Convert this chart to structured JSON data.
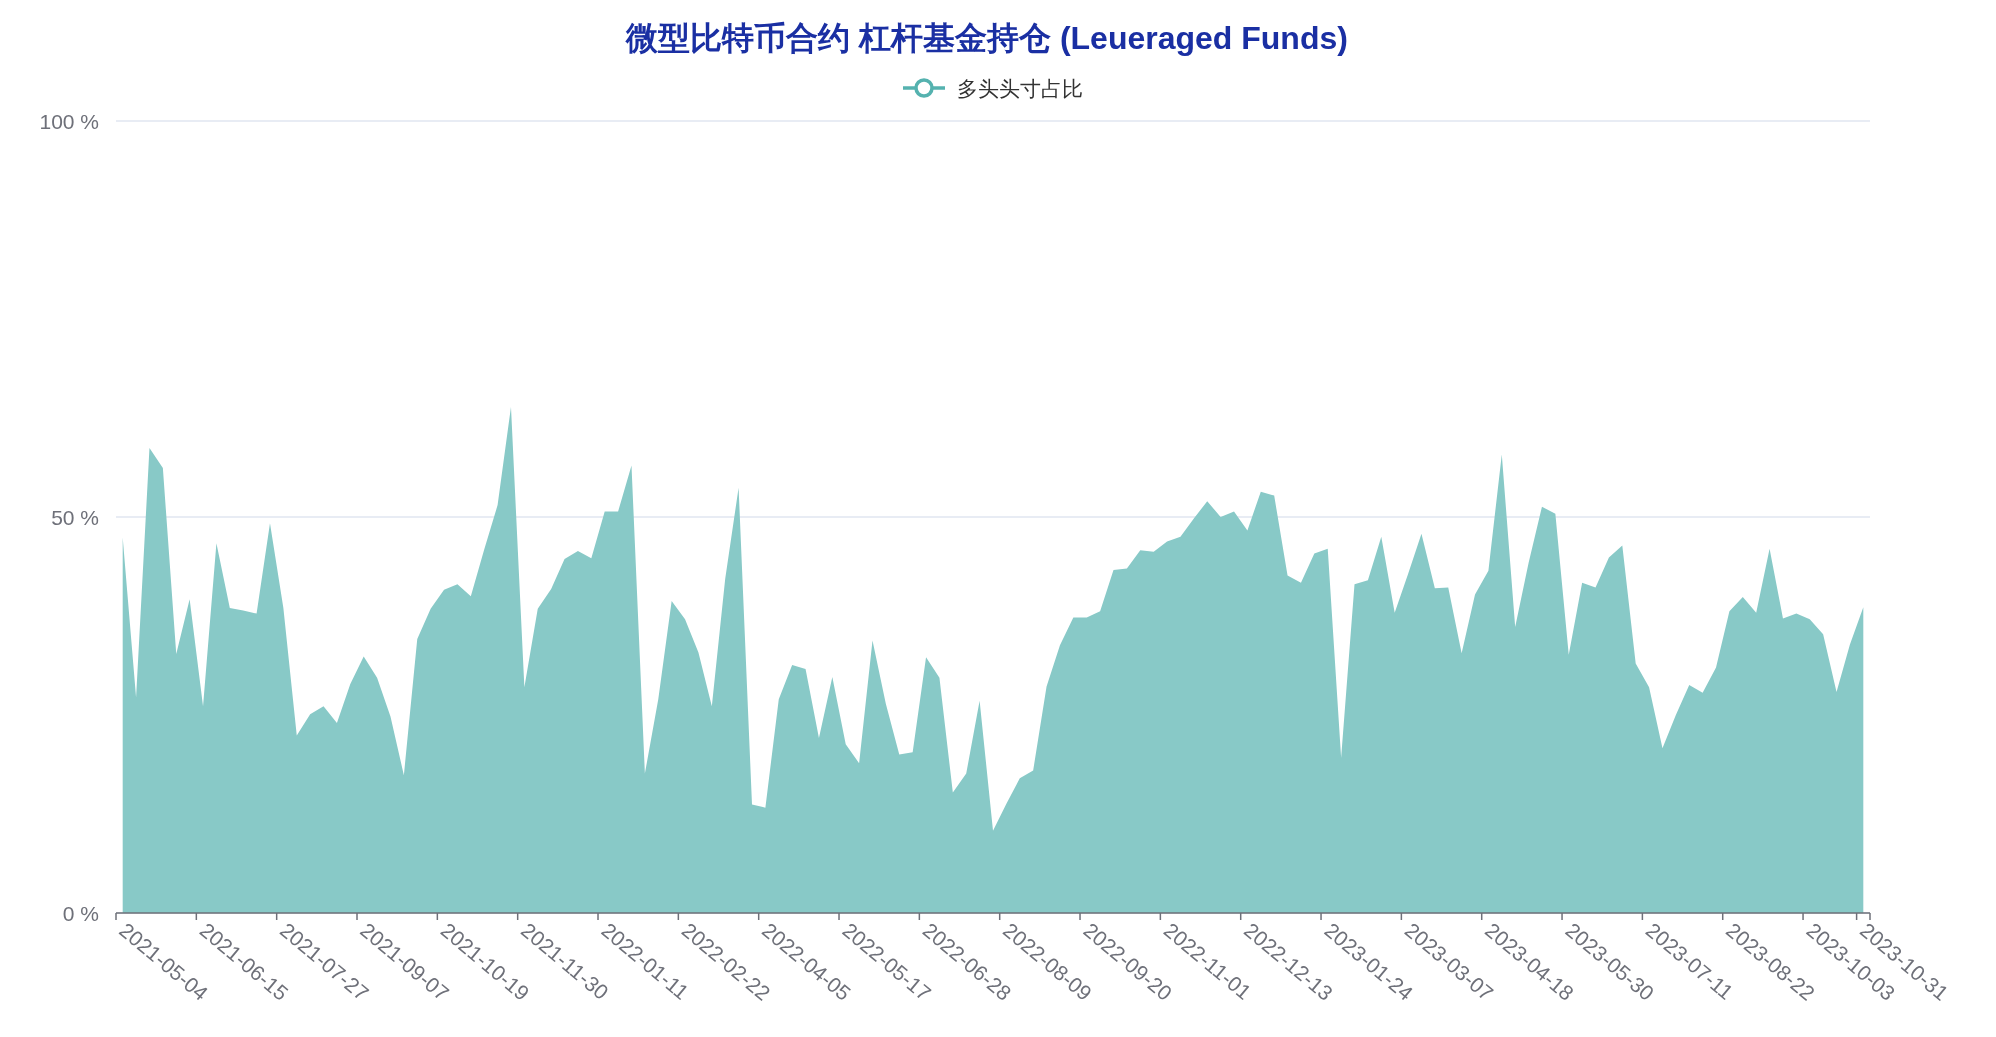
{
  "chart_data": {
    "type": "area",
    "title": "微型比特币合约 杠杆基金持仓 (Leueraged Funds)",
    "categories": [
      "2021-05-04",
      null,
      null,
      null,
      null,
      null,
      "2021-06-15",
      null,
      null,
      null,
      null,
      null,
      "2021-07-27",
      null,
      null,
      null,
      null,
      null,
      "2021-09-07",
      null,
      null,
      null,
      null,
      null,
      "2021-10-19",
      null,
      null,
      null,
      null,
      null,
      "2021-11-30",
      null,
      null,
      null,
      null,
      null,
      "2022-01-11",
      null,
      null,
      null,
      null,
      null,
      "2022-02-22",
      null,
      null,
      null,
      null,
      null,
      "2022-04-05",
      null,
      null,
      null,
      null,
      null,
      "2022-05-17",
      null,
      null,
      null,
      null,
      null,
      "2022-06-28",
      null,
      null,
      null,
      null,
      null,
      "2022-08-09",
      null,
      null,
      null,
      null,
      null,
      "2022-09-20",
      null,
      null,
      null,
      null,
      null,
      "2022-11-01",
      null,
      null,
      null,
      null,
      null,
      "2022-12-13",
      null,
      null,
      null,
      null,
      null,
      "2023-01-24",
      null,
      null,
      null,
      null,
      null,
      "2023-03-07",
      null,
      null,
      null,
      null,
      null,
      "2023-04-18",
      null,
      null,
      null,
      null,
      null,
      "2023-05-30",
      null,
      null,
      null,
      null,
      null,
      "2023-07-11",
      null,
      null,
      null,
      null,
      null,
      "2023-08-22",
      null,
      null,
      null,
      null,
      null,
      "2023-10-03",
      null,
      null,
      null,
      "2023-10-31"
    ],
    "series": [
      {
        "name": "多头头寸占比",
        "color": "#88c9c7",
        "values": [
          47.4,
          27.2,
          58.7,
          56.2,
          32.7,
          39.6,
          26.1,
          46.7,
          38.5,
          38.2,
          37.8,
          49.2,
          38.5,
          22.4,
          25.1,
          26.1,
          24.0,
          28.9,
          32.4,
          29.7,
          24.8,
          17.4,
          34.6,
          38.4,
          40.8,
          41.5,
          40.0,
          45.9,
          51.5,
          63.9,
          28.5,
          38.4,
          40.9,
          44.7,
          45.7,
          44.8,
          50.7,
          50.7,
          56.5,
          17.6,
          27.0,
          39.4,
          37.1,
          32.9,
          26.1,
          42.2,
          53.7,
          13.7,
          13.3,
          27.0,
          31.3,
          30.8,
          22.1,
          29.8,
          21.3,
          18.9,
          34.4,
          26.4,
          20.0,
          20.3,
          32.3,
          29.7,
          15.2,
          17.6,
          26.8,
          10.4,
          13.8,
          17.0,
          18.0,
          28.6,
          33.8,
          37.3,
          37.3,
          38.1,
          43.3,
          43.5,
          45.8,
          45.6,
          46.9,
          47.5,
          49.8,
          52.0,
          50.0,
          50.7,
          48.3,
          53.2,
          52.7,
          42.6,
          41.7,
          45.4,
          46.0,
          19.6,
          41.5,
          42.0,
          47.5,
          37.9,
          42.8,
          47.9,
          41.0,
          41.1,
          32.8,
          40.2,
          43.2,
          57.9,
          36.1,
          44.2,
          51.3,
          50.4,
          32.6,
          41.7,
          41.1,
          44.9,
          46.4,
          31.5,
          28.5,
          20.8,
          25.0,
          28.8,
          27.8,
          31.0,
          38.1,
          39.9,
          37.9,
          46.0,
          37.2,
          37.8,
          37.1,
          35.2,
          27.9,
          33.9,
          38.6
        ]
      }
    ],
    "ylim": [
      0,
      100
    ],
    "yticks": [
      {
        "value": 0,
        "label": "0 %"
      },
      {
        "value": 50,
        "label": "50 %"
      },
      {
        "value": 100,
        "label": "100 %"
      }
    ],
    "grid": "y",
    "legend": "top"
  }
}
